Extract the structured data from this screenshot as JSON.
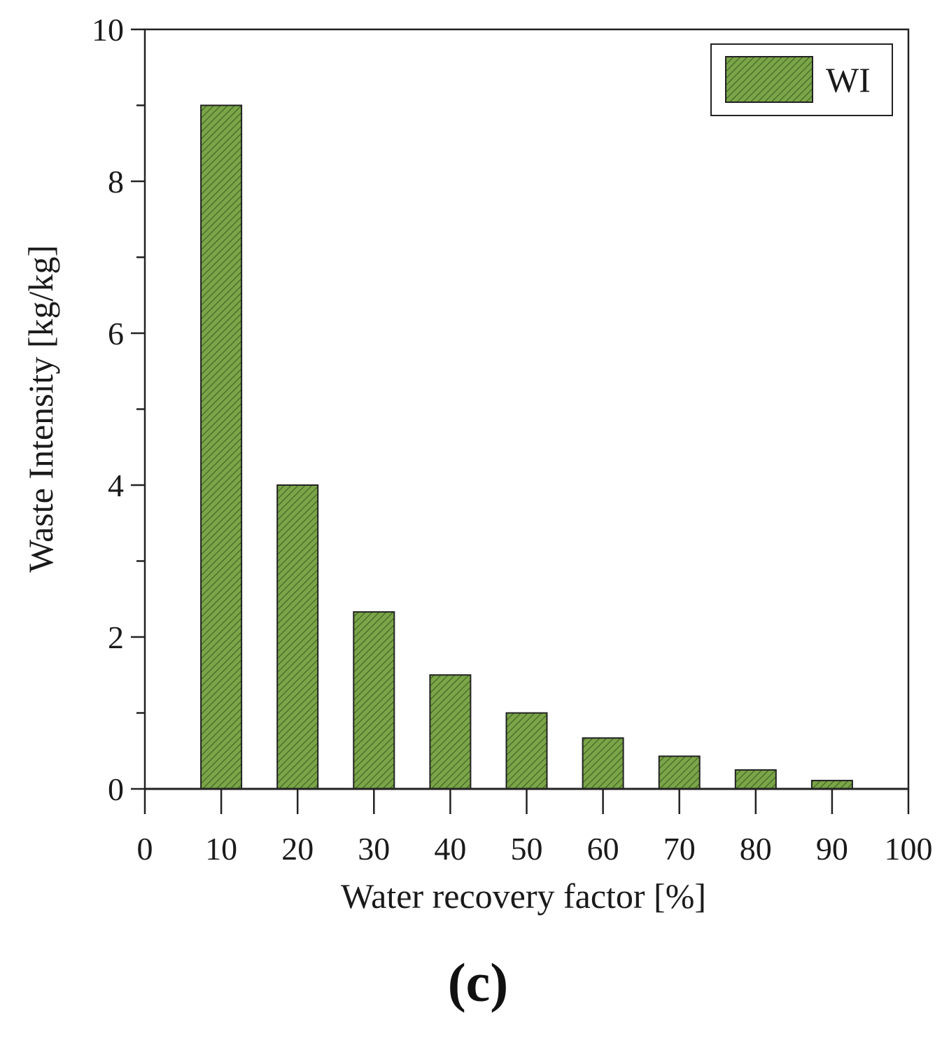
{
  "chart_data": {
    "type": "bar",
    "categories": [
      10,
      20,
      30,
      40,
      50,
      60,
      70,
      80,
      90
    ],
    "series": [
      {
        "name": "WI",
        "values": [
          9.0,
          4.0,
          2.33,
          1.5,
          1.0,
          0.67,
          0.43,
          0.25,
          0.11
        ]
      }
    ],
    "title": "",
    "xlabel": "Water recovery factor [%]",
    "ylabel": "Waste Intensity [kg/kg]",
    "xlim": [
      0,
      100
    ],
    "ylim": [
      0,
      10
    ],
    "xticks": [
      "0",
      "10",
      "20",
      "30",
      "40",
      "50",
      "60",
      "70",
      "80",
      "90",
      "100"
    ],
    "yticks": [
      "0",
      "2",
      "4",
      "6",
      "8",
      "10"
    ],
    "legend": {
      "label": "WI",
      "position": "top-right"
    },
    "grid": false,
    "bar_color": "#7aa548",
    "hatch_color": "#3f5f22",
    "panel_label": "(c)"
  }
}
